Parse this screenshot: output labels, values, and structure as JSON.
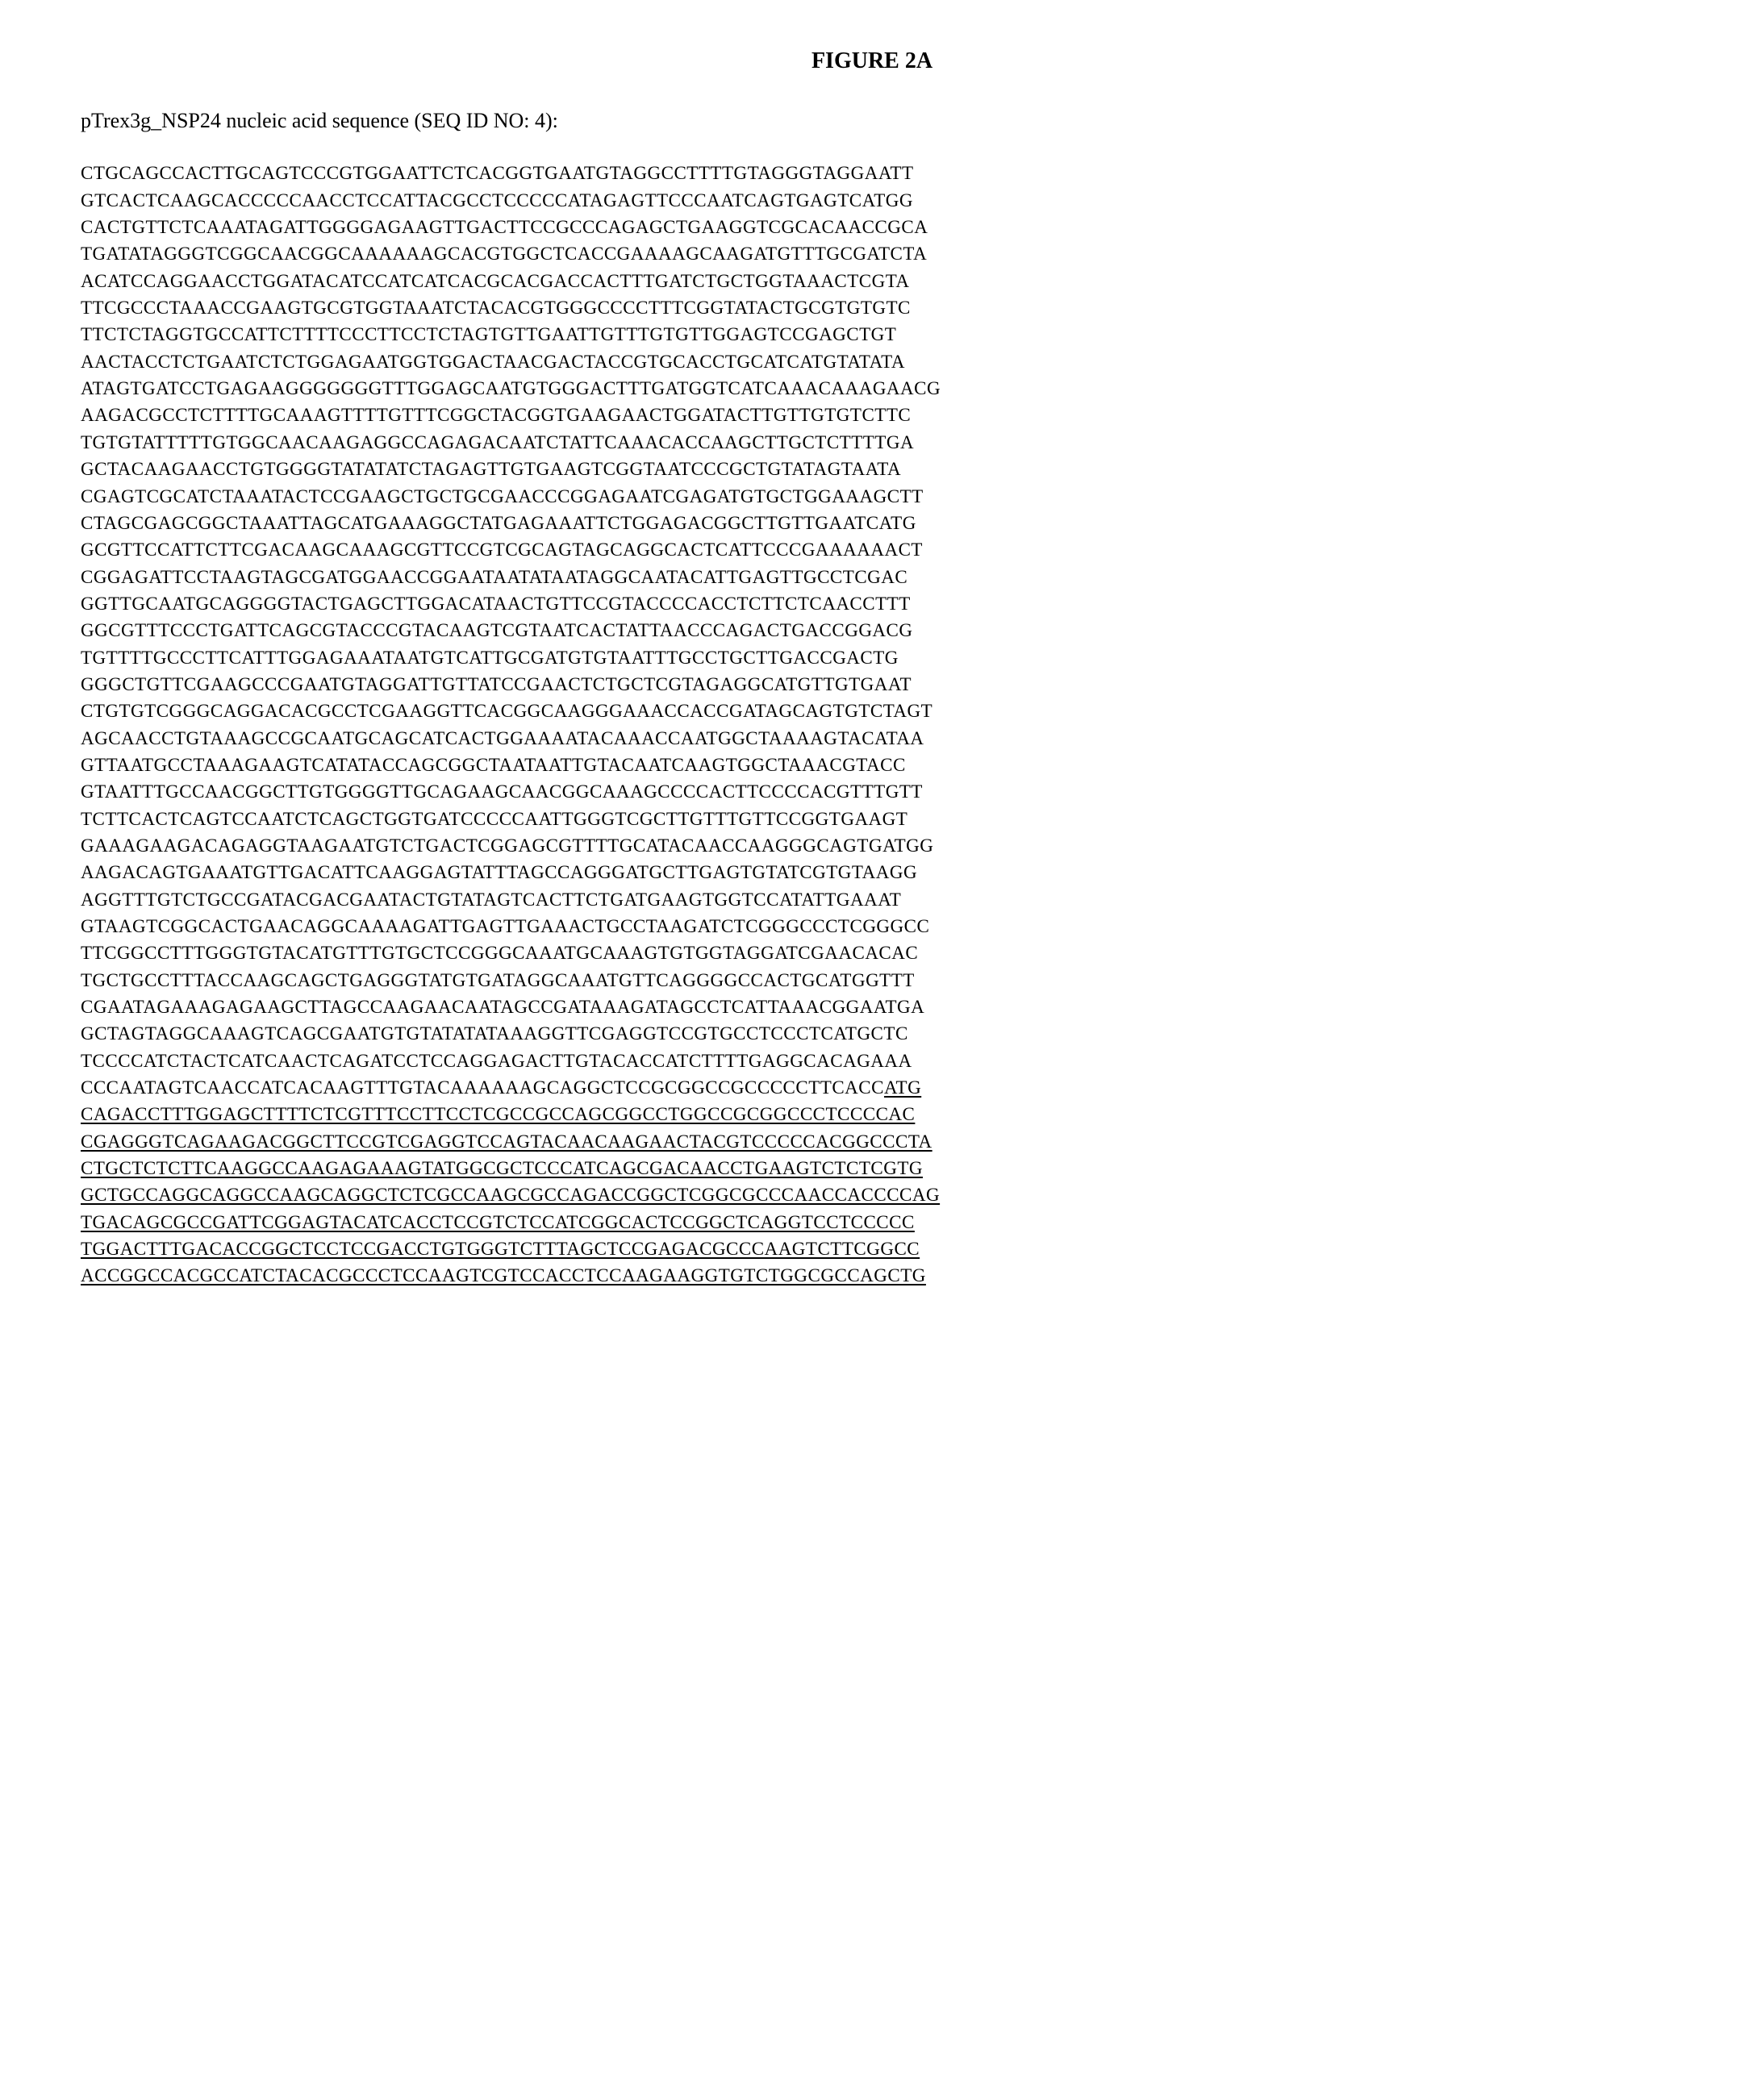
{
  "figure_title": "FIGURE 2A",
  "caption": "pTrex3g_NSP24 nucleic acid sequence (SEQ ID NO: 4):",
  "sequence_lines": [
    {
      "text": "CTGCAGCCACTTGCAGTCCCGTGGAATTCTCACGGTGAATGTAGGCCTTTTGTAGGGTAGGAATT",
      "underlined": false
    },
    {
      "text": "GTCACTCAAGCACCCCCAACCTCCATTACGCCTCCCCCATAGAGTTCCCAATCAGTGAGTCATGG",
      "underlined": false
    },
    {
      "text": "CACTGTTCTCAAATAGATTGGGGAGAAGTTGACTTCCGCCCAGAGCTGAAGGTCGCACAACCGCA",
      "underlined": false
    },
    {
      "text": "TGATATAGGGTCGGCAACGGCAAAAAAGCACGTGGCTCACCGAAAAGCAAGATGTTTGCGATCTA",
      "underlined": false
    },
    {
      "text": "ACATCCAGGAACCTGGATACATCCATCATCACGCACGACCACTTTGATCTGCTGGTAAACTCGTA",
      "underlined": false
    },
    {
      "text": "TTCGCCCTAAACCGAAGTGCGTGGTAAATCTACACGTGGGCCCCTTTCGGTATACTGCGTGTGTC",
      "underlined": false
    },
    {
      "text": "TTCTCTAGGTGCCATTCTTTTCCCTTCCTCTAGTGTTGAATTGTTTGTGTTGGAGTCCGAGCTGT",
      "underlined": false
    },
    {
      "text": "AACTACCTCTGAATCTCTGGAGAATGGTGGACTAACGACTACCGTGCACCTGCATCATGTATATA",
      "underlined": false
    },
    {
      "text": "ATAGTGATCCTGAGAAGGGGGGGTTTGGAGCAATGTGGGACTTTGATGGTCATCAAACAAAGAACG",
      "underlined": false
    },
    {
      "text": "AAGACGCCTCTTTTGCAAAGTTTTGTTTCGGCTACGGTGAAGAACTGGATACTTGTTGTGTCTTC",
      "underlined": false
    },
    {
      "text": "TGTGTATTTTTGTGGCAACAAGAGGCCAGAGACAATCTATTCAAACACCAAGCTTGCTCTTTTGA",
      "underlined": false
    },
    {
      "text": "GCTACAAGAACCTGTGGGGTATATATCTAGAGTTGTGAAGTCGGTAATCCCGCTGTATAGTAATA",
      "underlined": false
    },
    {
      "text": "CGAGTCGCATCTAAATACTCCGAAGCTGCTGCGAACCCGGAGAATCGAGATGTGCTGGAAAGCTT",
      "underlined": false
    },
    {
      "text": "CTAGCGAGCGGCTAAATTAGCATGAAAGGCTATGAGAAATTCTGGAGACGGCTTGTTGAATCATG",
      "underlined": false
    },
    {
      "text": "GCGTTCCATTCTTCGACAAGCAAAGCGTTCCGTCGCAGTAGCAGGCACTCATTCCCGAAAAAACT",
      "underlined": false
    },
    {
      "text": "CGGAGATTCCTAAGTAGCGATGGAACCGGAATAATATAATAGGCAATACATTGAGTTGCCTCGAC",
      "underlined": false
    },
    {
      "text": "GGTTGCAATGCAGGGGTACTGAGCTTGGACATAACTGTTCCGTACCCCACCTCTTCTCAACCTTT",
      "underlined": false
    },
    {
      "text": "GGCGTTTCCCTGATTCAGCGTACCCGTACAAGTCGTAATCACTATTAACCCAGACTGACCGGACG",
      "underlined": false
    },
    {
      "text": "TGTTTTGCCCTTCATTTGGAGAAATAATGTCATTGCGATGTGTAATTTGCCTGCTTGACCGACTG",
      "underlined": false
    },
    {
      "text": "GGGCTGTTCGAAGCCCGAATGTAGGATTGTTATCCGAACTCTGCTCGTAGAGGCATGTTGTGAAT",
      "underlined": false
    },
    {
      "text": "CTGTGTCGGGCAGGACACGCCTCGAAGGTTCACGGCAAGGGAAACCACCGATAGCAGTGTCTAGT",
      "underlined": false
    },
    {
      "text": "AGCAACCTGTAAAGCCGCAATGCAGCATCACTGGAAAATACAAACCAATGGCTAAAAGTACATAA",
      "underlined": false
    },
    {
      "text": "GTTAATGCCTAAAGAAGTCATATACCAGCGGCTAATAATTGTACAATCAAGTGGCTAAACGTACC",
      "underlined": false
    },
    {
      "text": "GTAATTTGCCAACGGCTTGTGGGGTTGCAGAAGCAACGGCAAAGCCCCACTTCCCCACGTTTGTT",
      "underlined": false
    },
    {
      "text": "TCTTCACTCAGTCCAATCTCAGCTGGTGATCCCCCAATTGGGTCGCTTGTTTGTTCCGGTGAAGT",
      "underlined": false
    },
    {
      "text": "GAAAGAAGACAGAGGTAAGAATGTCTGACTCGGAGCGTTTTGCATACAACCAAGGGCAGTGATGG",
      "underlined": false
    },
    {
      "text": "AAGACAGTGAAATGTTGACATTCAAGGAGTATTTAGCCAGGGATGCTTGAGTGTATCGTGTAAGG",
      "underlined": false
    },
    {
      "text": "AGGTTTGTCTGCCGATACGACGAATACTGTATAGTCACTTCTGATGAAGTGGTCCATATTGAAAT",
      "underlined": false
    },
    {
      "text": "GTAAGTCGGCACTGAACAGGCAAAAGATTGAGTTGAAACTGCCTAAGATCTCGGGCCCTCGGGCC",
      "underlined": false
    },
    {
      "text": "TTCGGCCTTTGGGTGTACATGTTTGTGCTCCGGGCAAATGCAAAGTGTGGTAGGATCGAACACAC",
      "underlined": false
    },
    {
      "text": "TGCTGCCTTTACCAAGCAGCTGAGGGTATGTGATAGGCAAATGTTCAGGGGCCACTGCATGGTTT",
      "underlined": false
    },
    {
      "text": "CGAATAGAAAGAGAAGCTTAGCCAAGAACAATAGCCGATAAAGATAGCCTCATTAAACGGAATGA",
      "underlined": false
    },
    {
      "text": "GCTAGTAGGCAAAGTCAGCGAATGTGTATATATAAAGGTTCGAGGTCCGTGCCTCCCTCATGCTC",
      "underlined": false
    },
    {
      "text": "TCCCCATCTACTCATCAACTCAGATCCTCCAGGAGACTTGTACACCATCTTTTGAGGCACAGAAA",
      "underlined": false
    },
    {
      "text": "CCCAATAGTCAACCATCACAAGTTTGTACAAAAAAGCAGGCTCCGCGGCCGCCCCCTTCACC",
      "underlined": false,
      "trailing_underlined": "ATG"
    },
    {
      "text": "CAGACCTTTGGAGCTTTTCTCGTTTCCTTCCTCGCCGCCAGCGGCCTGGCCGCGGCCCTCCCCAC",
      "underlined": true
    },
    {
      "text": "CGAGGGTCAGAAGACGGCTTCCGTCGAGGTCCAGTACAACAAGAACTACGTCCCCCACGGCCCTA",
      "underlined": true
    },
    {
      "text": "CTGCTCTCTTCAAGGCCAAGAGAAAGTATGGCGCTCCCATCAGCGACAACCTGAAGTCTCTCGTG",
      "underlined": true
    },
    {
      "text": "GCTGCCAGGCAGGCCAAGCAGGCTCTCGCCAAGCGCCAGACCGGCTCGGCGCCCAACCACCCCAG",
      "underlined": true
    },
    {
      "text": "TGACAGCGCCGATTCGGAGTACATCACCTCCGTCTCCATCGGCACTCCGGCTCAGGTCCTCCCCC",
      "underlined": true
    },
    {
      "text": "TGGACTTTGACACCGGCTCCTCCGACCTGTGGGTCTTTAGCTCCGAGACGCCCAAGTCTTCGGCC",
      "underlined": true
    },
    {
      "text": "ACCGGCCACGCCATCTACACGCCCTCCAAGTCGTCCACCTCCAAGAAGGTGTCTGGCGCCAGCTG",
      "underlined": true
    }
  ]
}
